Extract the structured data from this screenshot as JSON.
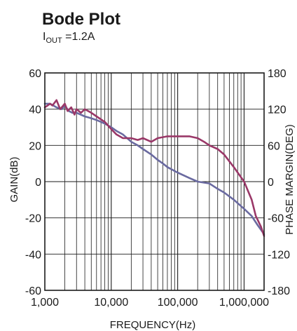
{
  "chart_data": {
    "type": "line",
    "title": "Bode Plot",
    "subtitle": {
      "prefix": "I",
      "sub": "OUT",
      "suffix": " =1.2A"
    },
    "xlabel": "FREQUENCY(Hz)",
    "ylabel": "GAIN(dB)",
    "y2label": "PHASE MARGIN(DEG)",
    "x_scale": "log",
    "xlim": [
      1000,
      2000000
    ],
    "ylim": [
      -60,
      60
    ],
    "y2lim": [
      -180,
      180
    ],
    "x_ticks": [
      1000,
      10000,
      100000,
      1000000
    ],
    "x_tick_labels": [
      "1,000",
      "10,000",
      "100,000",
      "1,000,000"
    ],
    "y_ticks": [
      60,
      40,
      20,
      0,
      -20,
      -40,
      -60
    ],
    "y_tick_labels": [
      "60",
      "40",
      "20",
      "0",
      "-20",
      "-40",
      "-60"
    ],
    "y2_ticks": [
      180,
      120,
      60,
      0,
      -60,
      -120,
      -180
    ],
    "y2_tick_labels": [
      "180",
      "120",
      "60",
      "0",
      "-60",
      "-120",
      "-180"
    ],
    "grid": true,
    "series": [
      {
        "axis": "gain",
        "color": "#6a6aa0",
        "x": [
          1000,
          1200,
          1500,
          1800,
          2000,
          2300,
          2600,
          3000,
          4000,
          5000,
          6000,
          7000,
          8000,
          10000,
          12000,
          15000,
          20000,
          25000,
          30000,
          40000,
          50000,
          60000,
          70000,
          100000,
          150000,
          200000,
          300000,
          400000,
          500000,
          700000,
          1000000,
          1300000,
          1600000,
          2000000
        ],
        "y": [
          43,
          43,
          41,
          40,
          42,
          39,
          38,
          38,
          36,
          35,
          34,
          33,
          32,
          30,
          28,
          26,
          22,
          20,
          18,
          15,
          12,
          10,
          8,
          5,
          2,
          0,
          -1,
          -4,
          -6,
          -10,
          -15,
          -19,
          -24,
          -29
        ]
      },
      {
        "axis": "phase",
        "color": "#9a3868",
        "x": [
          1000,
          1100,
          1200,
          1300,
          1500,
          1700,
          2000,
          2200,
          2500,
          2800,
          3000,
          3500,
          4000,
          5000,
          6000,
          8000,
          10000,
          12000,
          15000,
          20000,
          25000,
          30000,
          40000,
          50000,
          70000,
          100000,
          150000,
          200000,
          250000,
          300000,
          400000,
          500000,
          700000,
          1000000,
          1300000,
          1500000,
          1800000,
          2000000
        ],
        "y": [
          123,
          126,
          129,
          126,
          135,
          120,
          129,
          117,
          123,
          111,
          120,
          114,
          120,
          114,
          108,
          99,
          87,
          78,
          72,
          72,
          69,
          72,
          66,
          72,
          75,
          75,
          75,
          72,
          66,
          60,
          54,
          45,
          24,
          0,
          -30,
          -57,
          -75,
          -90
        ]
      }
    ]
  }
}
